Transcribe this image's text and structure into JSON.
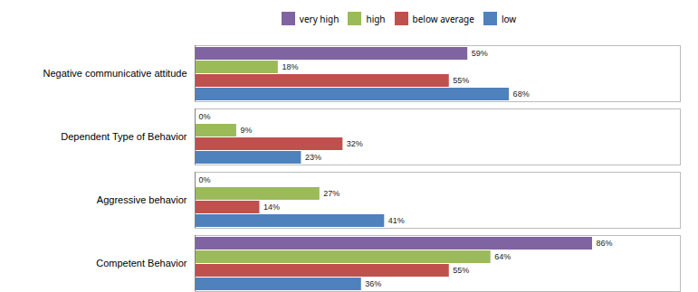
{
  "chart_data": {
    "type": "bar",
    "orientation": "horizontal",
    "categories": [
      "Competent Behavior",
      "Aggressive behavior",
      "Dependent Type of Behavior",
      "Negative communicative attitude"
    ],
    "series": [
      {
        "name": "very high",
        "color": "#8064A2",
        "values": [
          86,
          0,
          0,
          59
        ],
        "value_labels": [
          "86%",
          "0%",
          "0%",
          "59%"
        ]
      },
      {
        "name": "high",
        "color": "#9BBB59",
        "values": [
          64,
          27,
          9,
          18
        ],
        "value_labels": [
          "64%",
          "27%",
          "9%",
          "18%"
        ]
      },
      {
        "name": "below average",
        "color": "#C0504D",
        "values": [
          55,
          14,
          32,
          55
        ],
        "value_labels": [
          "55%",
          "14%",
          "32%",
          "55%"
        ]
      },
      {
        "name": "low",
        "color": "#4F81BD",
        "values": [
          36,
          41,
          23,
          68
        ],
        "value_labels": [
          "36%",
          "41%",
          "23%",
          "68%"
        ]
      }
    ],
    "xlim": [
      0,
      105
    ],
    "data_labels": true,
    "tick_labels": "y",
    "legend": "top",
    "grid": false
  }
}
